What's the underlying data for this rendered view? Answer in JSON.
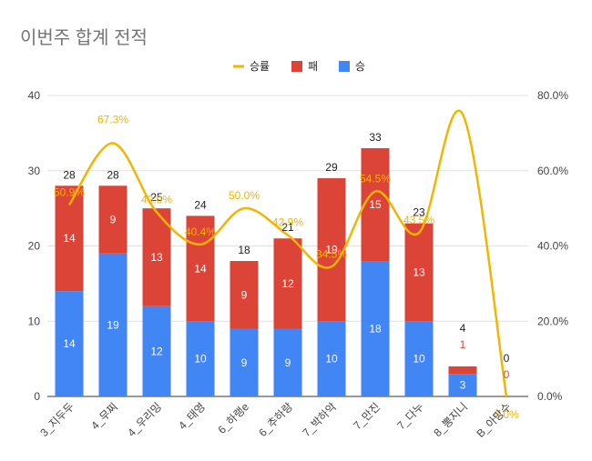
{
  "chart_data": {
    "type": "bar",
    "title": "이번주 합계 전적",
    "stacked": true,
    "categories": [
      "3_지두두",
      "4_무찌",
      "4_우리밍",
      "4_태영",
      "6_하랭e",
      "6_추하랑",
      "7_박하악",
      "7_만진",
      "7_다누",
      "8_뽕지니",
      "B_아망수"
    ],
    "series": [
      {
        "name": "승",
        "type": "bar",
        "axis": "left",
        "color": "#4285f4",
        "values": [
          14,
          19,
          12,
          10,
          9,
          9,
          10,
          18,
          10,
          3,
          0
        ]
      },
      {
        "name": "패",
        "type": "bar",
        "axis": "left",
        "color": "#db4437",
        "values": [
          14,
          9,
          13,
          14,
          9,
          12,
          19,
          15,
          13,
          1,
          0
        ]
      },
      {
        "name": "승률",
        "type": "line",
        "axis": "right",
        "smooth": true,
        "color": "#f4b400",
        "values": [
          50.9,
          67.3,
          49.0,
          40.4,
          50.0,
          42.9,
          34.5,
          54.5,
          43.5,
          75.0,
          0.0
        ]
      }
    ],
    "totals": [
      28,
      28,
      25,
      24,
      18,
      21,
      29,
      33,
      23,
      4,
      0
    ],
    "winrate_labels": [
      "50.9%",
      "67.3%",
      "49.0%",
      "40.4%",
      "50.0%",
      "42.9%",
      "34.5%",
      "54.5%",
      "43.5%",
      "",
      "0.0%"
    ],
    "yaxis_left": {
      "min": 0,
      "max": 40,
      "ticks": [
        "0",
        "10",
        "20",
        "30",
        "40"
      ]
    },
    "yaxis_right": {
      "min": 0,
      "max": 80,
      "ticks": [
        "0.0%",
        "20.0%",
        "40.0%",
        "60.0%",
        "80.0%"
      ]
    },
    "grid": true,
    "legend": {
      "position": "top",
      "items": [
        {
          "label": "승률",
          "color": "#f4b400",
          "kind": "line"
        },
        {
          "label": "패",
          "color": "#db4437",
          "kind": "box"
        },
        {
          "label": "승",
          "color": "#4285f4",
          "kind": "box"
        }
      ]
    }
  }
}
